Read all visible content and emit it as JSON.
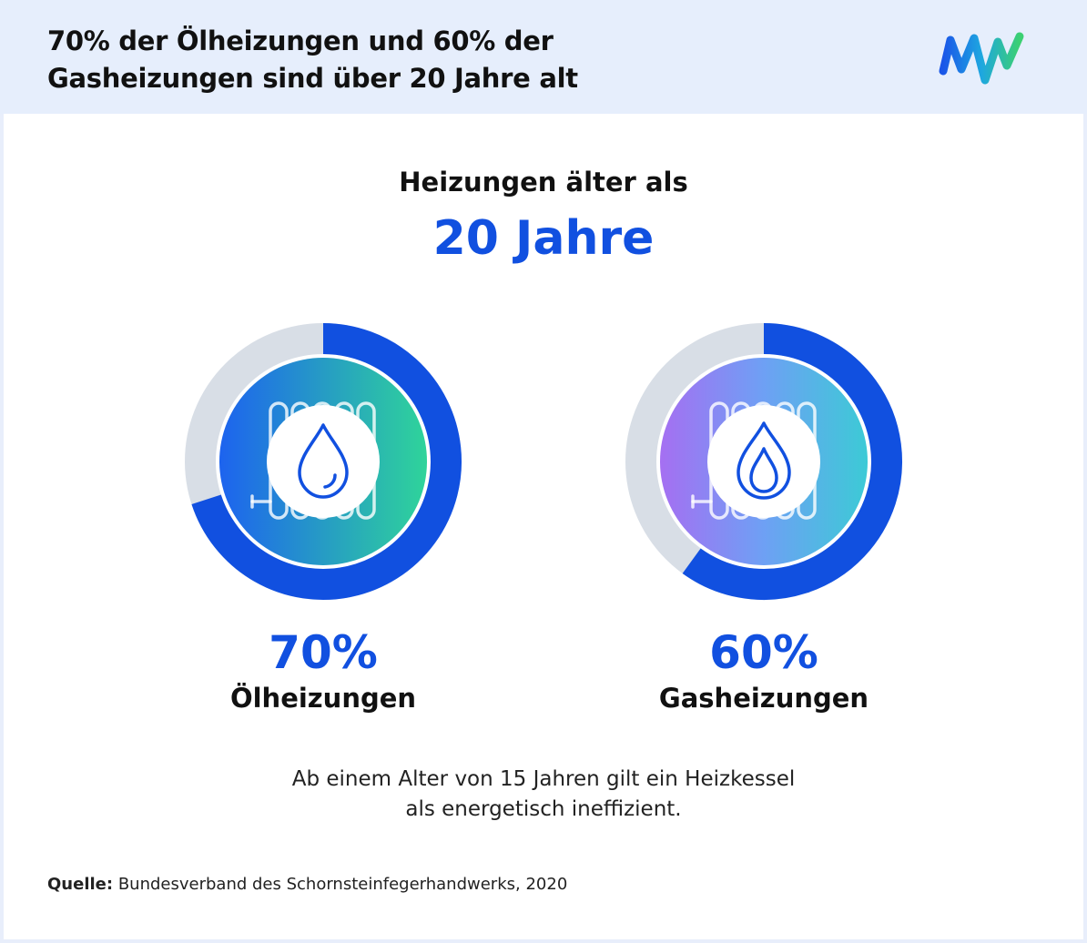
{
  "header": {
    "title_line1": "70% der Ölheizungen und 60% der",
    "title_line2": "Gasheizungen sind über 20 Jahre alt",
    "logo_icon": "mvv-logo-icon"
  },
  "intro": {
    "line1": "Heizungen älter als",
    "line2": "20 Jahre"
  },
  "chart_data": {
    "type": "pie",
    "series": [
      {
        "name": "Ölheizungen",
        "value": 70,
        "label": "70%",
        "icon": "oil-drop-icon",
        "inner_gradient": [
          "#1f6cf0",
          "#2fd39a"
        ]
      },
      {
        "name": "Gasheizungen",
        "value": 60,
        "label": "60%",
        "icon": "gas-flame-icon",
        "inner_gradient": [
          "#a06cf0",
          "#3fc8d8"
        ]
      }
    ],
    "max": 100
  },
  "note": {
    "line1": "Ab einem Alter von 15 Jahren gilt ein Heizkessel",
    "line2": "als energetisch ineffizient."
  },
  "source": {
    "label": "Quelle:",
    "text": "Bundesverband des Schornsteinfegerhandwerks, 2020"
  },
  "colors": {
    "accent": "#1150e0",
    "track": "#d8dee6",
    "header_bg": "#e6eefc",
    "icon": "#1150e0"
  }
}
